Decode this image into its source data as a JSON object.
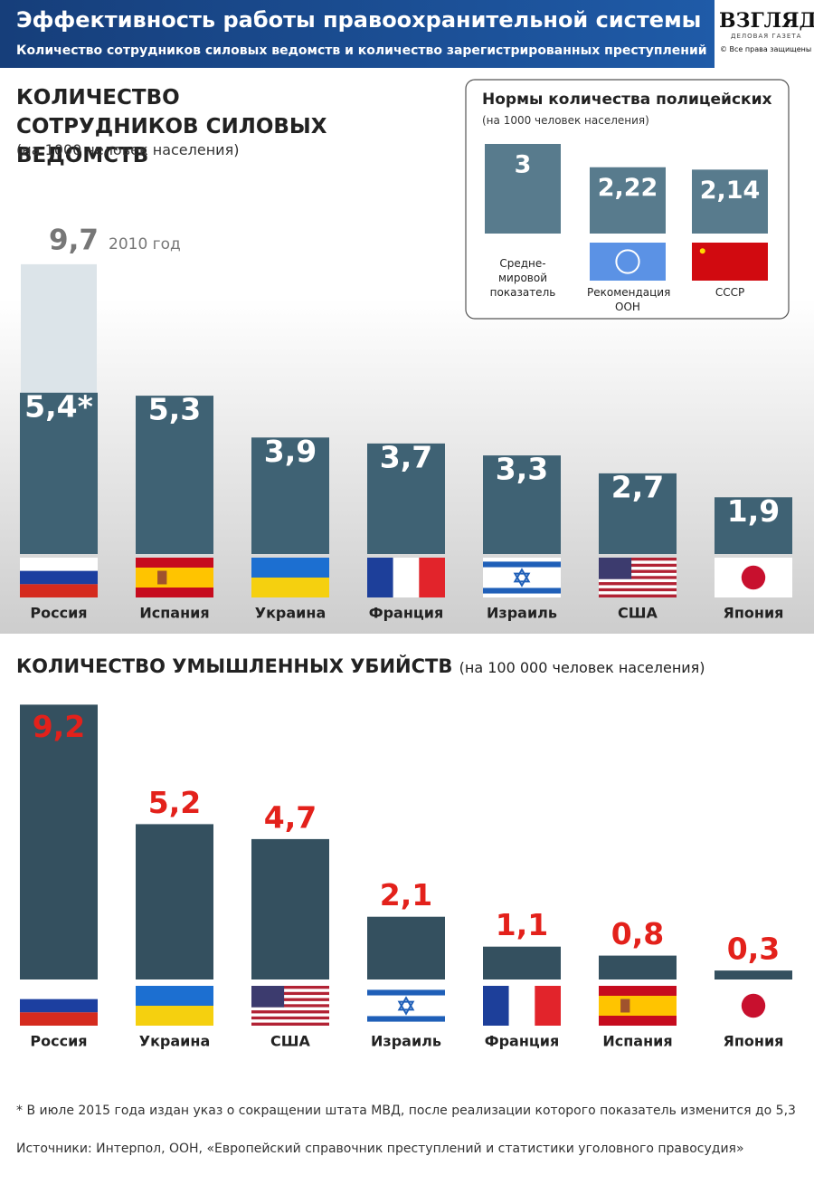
{
  "header": {
    "title": "Эффективность работы правоохранительной системы",
    "subtitle": "Количество сотрудников силовых ведомств и количество зарегистрированных преступлений",
    "logo": "ВЗГЛЯД",
    "logo_sub": "ДЕЛОВАЯ ГАЗЕТА",
    "rights": "© Все права защищены"
  },
  "chart_data": [
    {
      "type": "bar",
      "title": "КОЛИЧЕСТВО СОТРУДНИКОВ СИЛОВЫХ ВЕДОМСТВ",
      "subtitle": "(на 1000 человек населения)",
      "categories": [
        "Россия",
        "Испания",
        "Украина",
        "Франция",
        "Израиль",
        "США",
        "Япония"
      ],
      "values": [
        5.4,
        5.3,
        3.9,
        3.7,
        3.3,
        2.7,
        1.9
      ],
      "value_labels": [
        "5,4*",
        "5,3",
        "3,9",
        "3,7",
        "3,3",
        "2,7",
        "1,9"
      ],
      "color": "#3f6274",
      "label_color": "#ffffff",
      "previous": {
        "value": 9.7,
        "value_label": "9,7",
        "label": "2010 год"
      }
    },
    {
      "type": "bar",
      "title": "Нормы количества полицейских",
      "subtitle": "(на 1000 человек населения)",
      "categories": [
        "Средне-мировой показатель",
        "Рекомендация ООН",
        "СССР"
      ],
      "values": [
        3,
        2.22,
        2.14
      ],
      "value_labels": [
        "3",
        "2,22",
        "2,14"
      ],
      "color": "#587b8d",
      "label_color": "#ffffff"
    },
    {
      "type": "bar",
      "title": "КОЛИЧЕСТВО УМЫШЛЕННЫХ УБИЙСТВ",
      "subtitle": "(на 100 000 человек населения)",
      "categories": [
        "Россия",
        "Украина",
        "США",
        "Израиль",
        "Франция",
        "Испания",
        "Япония"
      ],
      "values": [
        9.2,
        5.2,
        4.7,
        2.1,
        1.1,
        0.8,
        0.3
      ],
      "value_labels": [
        "9,2",
        "5,2",
        "4,7",
        "2,1",
        "1,1",
        "0,8",
        "0,3"
      ],
      "color": "#34505f",
      "label_color": "#e3211b"
    }
  ],
  "footnote": "* В июле 2015 года издан указ о сокращении штата МВД, после реализации которого показатель изменится до 5,3",
  "sources": "Источники: Интерпол, ООН, «Европейский справочник преступлений и статистики уголовного правосудия»"
}
